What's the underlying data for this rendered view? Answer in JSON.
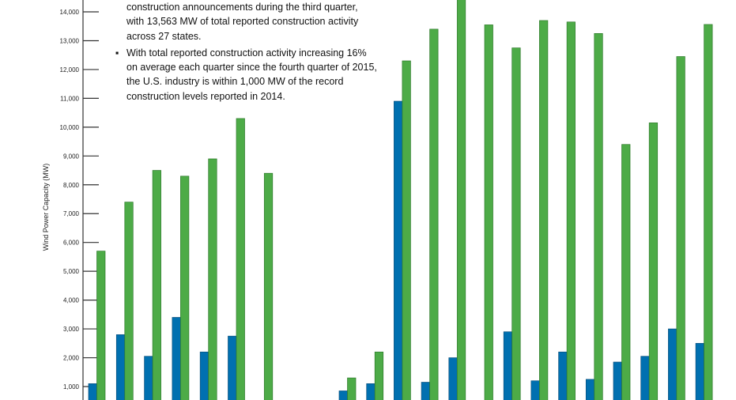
{
  "notes": {
    "line1": "construction announcements during the third quarter,",
    "line2": "with 13,563 MW of total reported construction activity",
    "line3": "across 27 states.",
    "bullet2": "With total reported construction activity increasing 16% on average each quarter since the fourth quarter of 2015, the U.S. industry is within 1,000 MW of the record construction levels reported in 2014."
  },
  "chart_data": {
    "type": "bar",
    "ylabel": "Wind Power Capacity (MW)",
    "ylim": [
      0,
      14000
    ],
    "yticks": [
      "1,000",
      "2,000",
      "3,000",
      "4,000",
      "5,000",
      "6,000",
      "7,000",
      "8,000",
      "9,000",
      "10,000",
      "11,000",
      "12,000",
      "13,000",
      "14,000"
    ],
    "colors": {
      "blue": "#0070b0",
      "green": "#4dab47"
    },
    "groups": [
      {
        "blue": [
          1100,
          2800,
          2050,
          3400,
          2200,
          2750,
          null
        ],
        "green": [
          5700,
          7400,
          8500,
          8300,
          8900,
          10300,
          8400
        ]
      },
      {
        "blue": [
          850,
          1100,
          10900,
          1150,
          2000,
          null,
          2900,
          1200,
          2200,
          1250,
          1850,
          2050,
          3000,
          2500
        ],
        "green": [
          1300,
          2200,
          12300,
          13400,
          14500,
          13550,
          12750,
          13700,
          13650,
          13250,
          9400,
          10150,
          12450,
          13563
        ]
      }
    ]
  }
}
